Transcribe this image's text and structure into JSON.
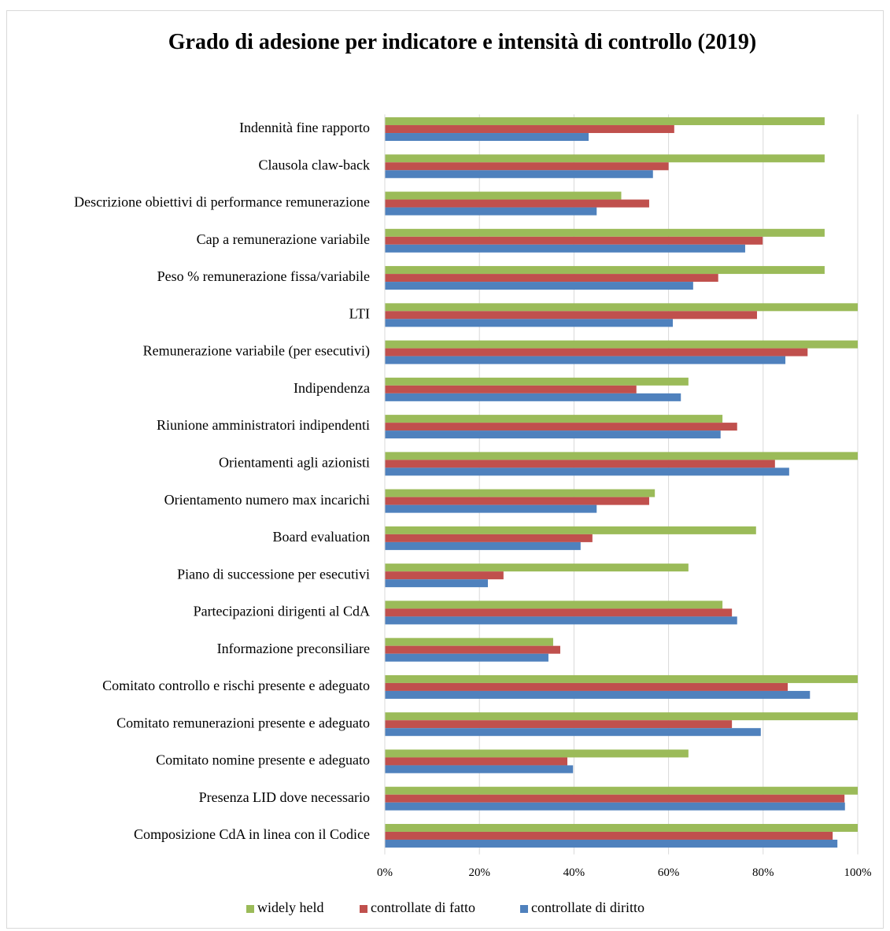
{
  "chart_data": {
    "type": "bar",
    "orientation": "horizontal",
    "title": "Grado di adesione per indicatore e intensità di controllo (2019)",
    "categories": [
      "Indennità fine rapporto",
      "Clausola claw-back",
      "Descrizione obiettivi di performance remunerazione",
      "Cap a remunerazione variabile",
      "Peso % remunerazione fissa/variabile",
      "LTI",
      "Remunerazione variabile (per esecutivi)",
      "Indipendenza",
      "Riunione amministratori indipendenti",
      "Orientamenti agli azionisti",
      "Orientamento  numero max incarichi",
      "Board evaluation",
      "Piano di successione per esecutivi",
      "Partecipazioni dirigenti al CdA",
      "Informazione preconsiliare",
      "Comitato controllo e rischi presente e adeguato",
      "Comitato remunerazioni presente e adeguato",
      "Comitato nomine presente e adeguato",
      "Presenza LID dove necessario",
      "Composizione CdA in linea con il Codice"
    ],
    "series": [
      {
        "name": "widely held",
        "color": "#9bbb59",
        "values": [
          93,
          93,
          50,
          93,
          93,
          100,
          100,
          64.2,
          71.4,
          100,
          57.1,
          78.5,
          64.2,
          71.4,
          35.6,
          100,
          100,
          64.2,
          100,
          100
        ]
      },
      {
        "name": "controllate di fatto",
        "color": "#c0504d",
        "values": [
          61.2,
          60,
          55.9,
          79.9,
          70.5,
          78.7,
          89.4,
          53.2,
          74.5,
          82.5,
          55.9,
          43.9,
          25.1,
          73.4,
          37.1,
          85.2,
          73.4,
          38.6,
          97.2,
          94.7
        ]
      },
      {
        "name": "controllate di diritto",
        "color": "#4f81bd",
        "values": [
          43.1,
          56.7,
          44.8,
          76.2,
          65.2,
          60.9,
          84.7,
          62.6,
          71,
          85.5,
          44.8,
          41.4,
          21.8,
          74.5,
          34.6,
          89.9,
          79.5,
          39.8,
          97.3,
          95.7
        ]
      }
    ],
    "xlim": [
      0,
      100
    ],
    "xticks": [
      {
        "value": 0,
        "label": "0%"
      },
      {
        "value": 20,
        "label": "20%"
      },
      {
        "value": 40,
        "label": "40%"
      },
      {
        "value": 60,
        "label": "60%"
      },
      {
        "value": 80,
        "label": "80%"
      },
      {
        "value": 100,
        "label": "100%"
      }
    ],
    "grid": true,
    "legend": "bottom"
  }
}
